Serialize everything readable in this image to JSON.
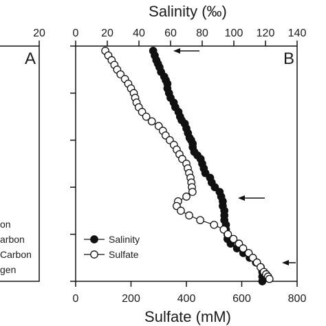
{
  "chart_data": [
    {
      "panel": "A",
      "type": "line",
      "top_axis_ticks": [
        "20"
      ],
      "legend": [
        "on",
        "arbon",
        "Carbon",
        "gen"
      ]
    },
    {
      "panel": "B",
      "type": "scatter",
      "top_axis": {
        "label": "Salinity (‰)",
        "range": [
          0,
          140
        ],
        "ticks": [
          "0",
          "20",
          "40",
          "60",
          "80",
          "100",
          "120",
          "140"
        ]
      },
      "bottom_axis": {
        "label": "Sulfate (mM)",
        "range": [
          0,
          800
        ],
        "ticks": [
          "0",
          "200",
          "400",
          "600",
          "800"
        ]
      },
      "y_range": [
        0,
        100
      ],
      "y_ticks": [
        0,
        20,
        40,
        60,
        80,
        100
      ],
      "y_tick_labels_visible": false,
      "legend_placement": "bottom-left",
      "series": [
        {
          "name": "Salinity",
          "marker": "filled-circle",
          "color": "#111111",
          "axis": "top",
          "x": [
            49,
            50,
            51,
            52,
            53,
            54,
            56,
            57,
            58,
            58,
            59,
            60,
            62,
            63,
            65,
            66,
            67,
            69,
            70,
            71,
            72,
            73,
            74,
            74,
            75,
            77,
            79,
            80,
            81,
            82,
            85,
            86,
            88,
            91,
            92,
            93,
            93,
            94,
            94,
            94,
            95,
            95,
            96,
            96,
            98,
            102,
            106,
            110,
            114,
            117,
            118,
            118,
            118
          ],
          "y": [
            2,
            4,
            6,
            7.5,
            9,
            11,
            13,
            14.5,
            16,
            18,
            20,
            22,
            24,
            26,
            28,
            30,
            31.5,
            33,
            35,
            37,
            39,
            40,
            41.5,
            43,
            45,
            46.5,
            48,
            50,
            52,
            54,
            56,
            58,
            60,
            62,
            64,
            66,
            68,
            70,
            72,
            74,
            76,
            78,
            80,
            82,
            84,
            86,
            88,
            90,
            92,
            94,
            96,
            98,
            100
          ]
        },
        {
          "name": "Sulfate",
          "marker": "open-circle",
          "color": "#111111",
          "axis": "bottom",
          "x": [
            107,
            118,
            130,
            140,
            150,
            162,
            178,
            190,
            200,
            210,
            215,
            220,
            228,
            240,
            255,
            275,
            300,
            315,
            325,
            340,
            355,
            365,
            375,
            385,
            400,
            405,
            410,
            415,
            418,
            420,
            422,
            400,
            370,
            365,
            380,
            410,
            450,
            500,
            535,
            550,
            570,
            590,
            605,
            625,
            640,
            655,
            668,
            680,
            688,
            695,
            700
          ],
          "y": [
            2,
            4,
            6,
            8,
            10,
            12,
            14,
            16,
            18,
            20,
            22,
            24,
            26,
            28,
            30,
            32,
            34,
            36,
            38,
            40,
            42,
            44,
            46,
            48,
            50,
            52,
            54,
            56,
            58,
            60,
            62,
            64,
            66,
            68,
            70,
            72,
            74,
            76,
            78,
            80,
            82,
            84,
            86,
            88,
            90,
            92,
            94,
            96,
            97,
            98,
            99
          ]
        }
      ],
      "annotations": [
        "arrow",
        "arrow",
        "arrow"
      ],
      "panel_label": "B"
    }
  ]
}
